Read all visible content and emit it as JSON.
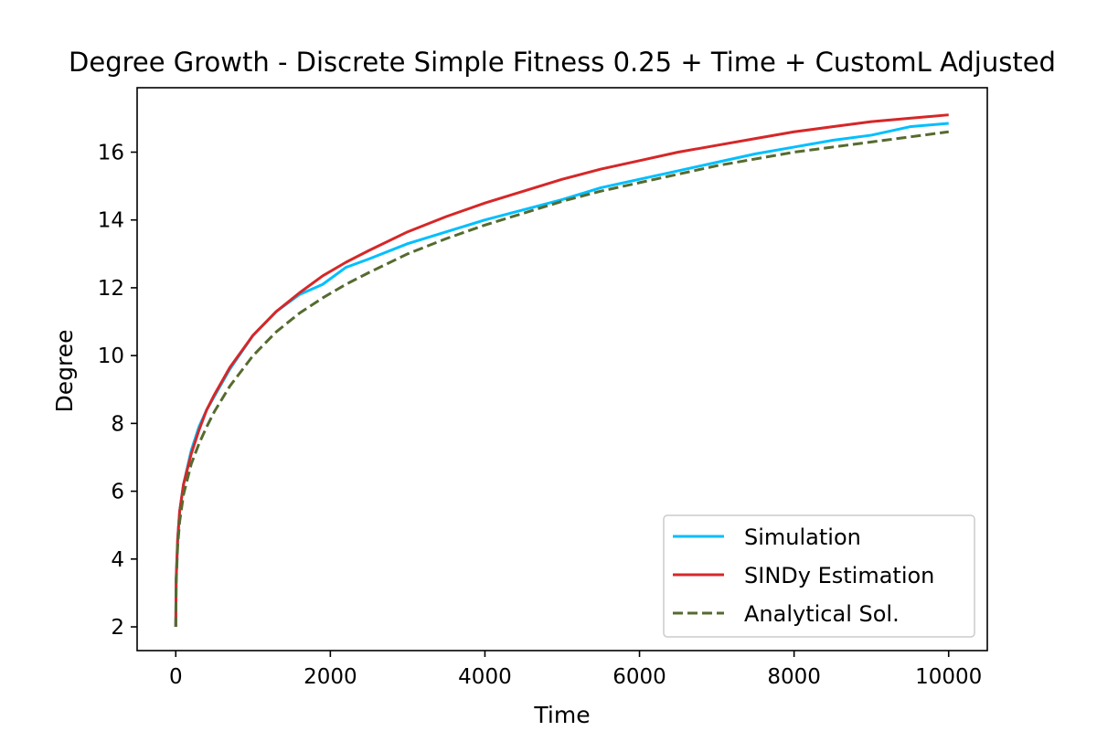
{
  "chart_data": {
    "type": "line",
    "title": "Degree Growth - Discrete Simple Fitness 0.25 + Time + CustomL Adjusted",
    "xlabel": "Time",
    "ylabel": "Degree",
    "xlim": [
      -500,
      10500
    ],
    "ylim": [
      1.3,
      17.9
    ],
    "xticks": [
      0,
      2000,
      4000,
      6000,
      8000,
      10000
    ],
    "xtick_labels": [
      "0",
      "2000",
      "4000",
      "6000",
      "8000",
      "10000"
    ],
    "yticks": [
      2,
      4,
      6,
      8,
      10,
      12,
      14,
      16
    ],
    "ytick_labels": [
      "2",
      "4",
      "6",
      "8",
      "10",
      "12",
      "14",
      "16"
    ],
    "grid": false,
    "legend_position": "lower-right",
    "series": [
      {
        "name": "Simulation",
        "color": "#00bfff",
        "style": "solid",
        "x": [
          0,
          5,
          25,
          50,
          100,
          200,
          300,
          400,
          500,
          700,
          1000,
          1300,
          1600,
          1900,
          2200,
          2500,
          3000,
          3500,
          4000,
          4500,
          5000,
          5500,
          6000,
          6500,
          7000,
          7500,
          8000,
          8500,
          9000,
          9500,
          10000
        ],
        "y": [
          2.0,
          3.4,
          4.6,
          5.4,
          6.2,
          7.2,
          7.9,
          8.4,
          8.8,
          9.6,
          10.6,
          11.3,
          11.8,
          12.1,
          12.6,
          12.85,
          13.3,
          13.65,
          14.0,
          14.3,
          14.6,
          14.95,
          15.2,
          15.45,
          15.7,
          15.95,
          16.15,
          16.35,
          16.5,
          16.75,
          16.85
        ]
      },
      {
        "name": "SINDy Estimation",
        "color": "#d62728",
        "style": "solid",
        "x": [
          0,
          5,
          25,
          50,
          100,
          200,
          300,
          400,
          500,
          700,
          1000,
          1300,
          1600,
          1900,
          2200,
          2500,
          3000,
          3500,
          4000,
          4500,
          5000,
          5500,
          6000,
          6500,
          7000,
          7500,
          8000,
          8500,
          9000,
          9500,
          10000
        ],
        "y": [
          2.0,
          3.4,
          4.6,
          5.4,
          6.2,
          7.1,
          7.8,
          8.4,
          8.85,
          9.65,
          10.6,
          11.3,
          11.85,
          12.35,
          12.75,
          13.1,
          13.65,
          14.1,
          14.5,
          14.85,
          15.2,
          15.5,
          15.75,
          16.0,
          16.2,
          16.4,
          16.6,
          16.75,
          16.9,
          17.0,
          17.1
        ]
      },
      {
        "name": "Analytical Sol.",
        "color": "#556b2f",
        "style": "dashed",
        "x": [
          0,
          5,
          25,
          50,
          100,
          200,
          300,
          400,
          500,
          700,
          1000,
          1300,
          1600,
          1900,
          2200,
          2500,
          3000,
          3500,
          4000,
          4500,
          5000,
          5500,
          6000,
          6500,
          7000,
          7500,
          8000,
          8500,
          9000,
          9500,
          10000
        ],
        "y": [
          2.0,
          3.3,
          4.4,
          5.1,
          5.9,
          6.8,
          7.4,
          7.9,
          8.35,
          9.1,
          10.0,
          10.7,
          11.25,
          11.7,
          12.1,
          12.45,
          13.0,
          13.45,
          13.85,
          14.2,
          14.55,
          14.85,
          15.1,
          15.35,
          15.6,
          15.8,
          16.0,
          16.15,
          16.3,
          16.45,
          16.6
        ]
      }
    ]
  }
}
